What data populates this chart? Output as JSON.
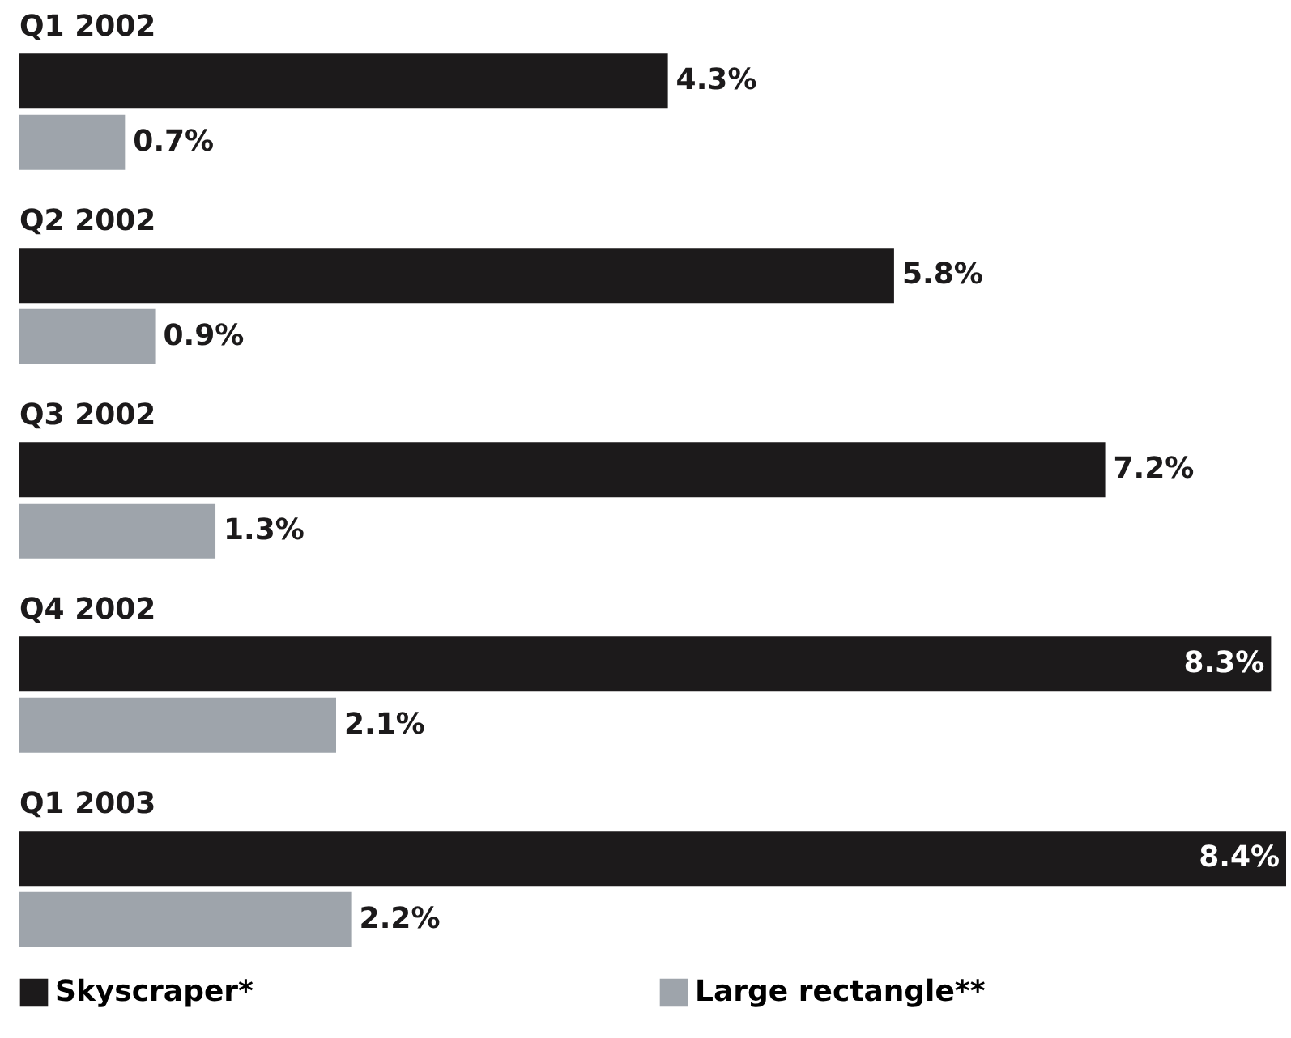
{
  "chart_data": {
    "type": "bar",
    "orientation": "horizontal",
    "categories": [
      "Q1 2002",
      "Q2 2002",
      "Q3 2002",
      "Q4 2002",
      "Q1 2003"
    ],
    "series": [
      {
        "name": "Skyscraper*",
        "color": "#1c1a1b",
        "values": [
          4.3,
          5.8,
          7.2,
          8.3,
          8.4
        ],
        "value_labels": [
          "4.3%",
          "5.8%",
          "7.2%",
          "8.3%",
          "8.4%"
        ]
      },
      {
        "name": "Large rectangle**",
        "color": "#9ea4ab",
        "values": [
          0.7,
          0.9,
          1.3,
          2.1,
          2.2
        ],
        "value_labels": [
          "0.7%",
          "0.9%",
          "1.3%",
          "2.1%",
          "2.2%"
        ]
      }
    ],
    "legend": "bottom",
    "tick_labels": false
  }
}
